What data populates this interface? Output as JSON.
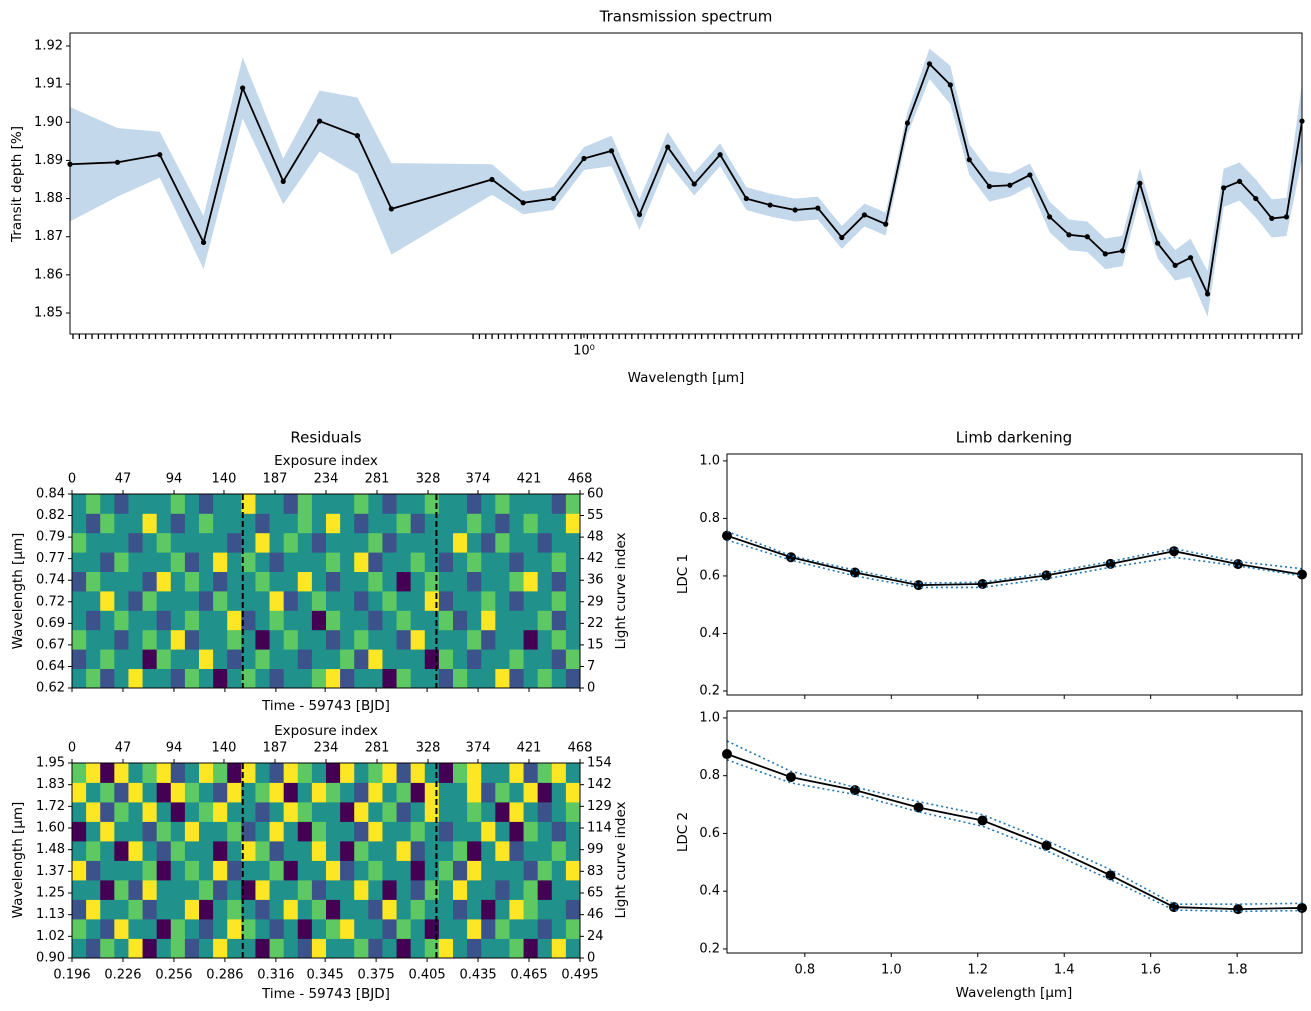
{
  "chart_data": [
    {
      "type": "line",
      "title": "Transmission spectrum",
      "xlabel": "Wavelength [μm]",
      "ylabel": "Transit depth [%]",
      "xscale": "log",
      "xlim": [
        0.62,
        1.95
      ],
      "xticks": [
        {
          "value": 1,
          "label": "10⁰"
        }
      ],
      "ylim": [
        1.8445,
        1.9234
      ],
      "yticks": [
        1.85,
        1.86,
        1.87,
        1.88,
        1.89,
        {
          "value": 1.9,
          "label": "1.90"
        },
        1.91,
        1.92
      ],
      "band_color": "#c4d8eb",
      "x": [
        0.62,
        0.648,
        0.674,
        0.702,
        0.728,
        0.756,
        0.782,
        0.81,
        0.836,
        0.918,
        0.945,
        0.972,
        1.0,
        1.026,
        1.053,
        1.081,
        1.108,
        1.135,
        1.163,
        1.189,
        1.217,
        1.243,
        1.271,
        1.298,
        1.324,
        1.351,
        1.379,
        1.406,
        1.431,
        1.458,
        1.486,
        1.514,
        1.542,
        1.57,
        1.597,
        1.624,
        1.65,
        1.677,
        1.705,
        1.733,
        1.758,
        1.786,
        1.813,
        1.84,
        1.868,
        1.896,
        1.922,
        1.95
      ],
      "series": [
        {
          "color": "#000000",
          "marker": true,
          "values": [
            1.889,
            1.8895,
            1.8915,
            1.8685,
            1.909,
            1.8845,
            1.9003,
            1.8965,
            1.8773,
            1.885,
            1.8789,
            1.88,
            1.8905,
            1.8925,
            1.8758,
            1.8935,
            1.8838,
            1.8915,
            1.88,
            1.8783,
            1.877,
            1.8775,
            1.8698,
            1.8757,
            1.8733,
            1.8998,
            1.9153,
            1.9098,
            1.8902,
            1.8832,
            1.8835,
            1.8862,
            1.8752,
            1.8705,
            1.87,
            1.8655,
            1.8663,
            1.884,
            1.8683,
            1.8625,
            1.8645,
            1.855,
            1.8828,
            1.8845,
            1.88,
            1.8748,
            1.8752,
            1.9003
          ],
          "errors": [
            0.015,
            0.009,
            0.006,
            0.007,
            0.008,
            0.006,
            0.008,
            0.01,
            0.012,
            0.004,
            0.003,
            0.003,
            0.003,
            0.004,
            0.004,
            0.004,
            0.003,
            0.003,
            0.003,
            0.003,
            0.003,
            0.003,
            0.003,
            0.003,
            0.003,
            0.003,
            0.004,
            0.005,
            0.004,
            0.004,
            0.003,
            0.003,
            0.004,
            0.004,
            0.004,
            0.004,
            0.004,
            0.004,
            0.004,
            0.004,
            0.005,
            0.006,
            0.005,
            0.005,
            0.005,
            0.005,
            0.005,
            0.01
          ]
        }
      ]
    },
    {
      "type": "heatmap",
      "title": "Residuals",
      "xlabel": "Time - 59743 [BJD]",
      "ylabel": "Wavelength [μm]",
      "y2label": "Light curve index",
      "colormap": "viridis",
      "zlim": [
        0,
        4
      ],
      "xlim": [
        0.196,
        0.495
      ],
      "xticks": [
        0.196,
        0.226,
        0.256,
        0.286,
        0.316,
        0.345,
        0.375,
        0.405,
        0.435,
        0.465,
        0.495
      ],
      "ylim": [
        0.62,
        0.84
      ],
      "yticks": [
        0.62,
        {
          "value": 0.6444,
          "label": "0.64"
        },
        {
          "value": 0.6689,
          "label": "0.67"
        },
        {
          "value": 0.6933,
          "label": "0.69"
        },
        {
          "value": 0.7178,
          "label": "0.72"
        },
        {
          "value": 0.7422,
          "label": "0.74"
        },
        {
          "value": 0.7667,
          "label": "0.77"
        },
        {
          "value": 0.7911,
          "label": "0.79"
        },
        {
          "value": 0.8156,
          "label": "0.82"
        },
        0.84
      ],
      "y2ticks": [
        0,
        7,
        15,
        22,
        29,
        36,
        42,
        48,
        55,
        60
      ],
      "top_axis": {
        "label": "Exposure index",
        "lim": [
          0,
          468
        ],
        "ticks": [
          0,
          47,
          94,
          140,
          187,
          234,
          281,
          328,
          374,
          421,
          468
        ]
      },
      "vlines": [
        0.2965,
        0.4105
      ],
      "z": [
        [
          2,
          3,
          1,
          2,
          4,
          2,
          2,
          1,
          3,
          2,
          0,
          2,
          3,
          2,
          1,
          2,
          2,
          3,
          4,
          1,
          2,
          2,
          0,
          3,
          2,
          2,
          1,
          3,
          2,
          2,
          4,
          1,
          2,
          3,
          2,
          1
        ],
        [
          1,
          2,
          3,
          2,
          2,
          0,
          3,
          2,
          2,
          4,
          2,
          1,
          2,
          3,
          2,
          2,
          1,
          2,
          2,
          3,
          1,
          4,
          2,
          2,
          2,
          0,
          3,
          2,
          1,
          2,
          2,
          3,
          2,
          2,
          1,
          3
        ],
        [
          3,
          2,
          2,
          1,
          2,
          3,
          2,
          4,
          1,
          2,
          2,
          3,
          2,
          0,
          2,
          3,
          2,
          2,
          1,
          2,
          3,
          2,
          2,
          1,
          4,
          2,
          2,
          2,
          3,
          1,
          2,
          2,
          0,
          2,
          3,
          2
        ],
        [
          2,
          1,
          2,
          3,
          2,
          2,
          1,
          2,
          3,
          2,
          2,
          4,
          1,
          2,
          3,
          2,
          2,
          0,
          3,
          2,
          2,
          1,
          2,
          3,
          2,
          2,
          3,
          1,
          2,
          4,
          2,
          2,
          2,
          3,
          1,
          2
        ],
        [
          2,
          2,
          4,
          2,
          1,
          3,
          2,
          2,
          2,
          1,
          3,
          2,
          2,
          2,
          4,
          1,
          2,
          3,
          2,
          2,
          1,
          2,
          3,
          2,
          2,
          4,
          1,
          2,
          2,
          3,
          2,
          1,
          2,
          2,
          3,
          2
        ],
        [
          1,
          3,
          2,
          2,
          2,
          1,
          4,
          2,
          3,
          2,
          1,
          2,
          2,
          3,
          2,
          2,
          4,
          2,
          1,
          2,
          2,
          3,
          2,
          0,
          2,
          3,
          2,
          2,
          1,
          2,
          2,
          3,
          4,
          2,
          1,
          2
        ],
        [
          2,
          2,
          1,
          3,
          2,
          2,
          2,
          3,
          1,
          2,
          4,
          2,
          3,
          2,
          1,
          2,
          2,
          2,
          3,
          2,
          4,
          1,
          2,
          2,
          3,
          2,
          1,
          2,
          3,
          2,
          2,
          1,
          2,
          2,
          3,
          2
        ],
        [
          3,
          2,
          2,
          2,
          1,
          2,
          3,
          2,
          2,
          2,
          2,
          1,
          2,
          4,
          2,
          3,
          2,
          1,
          2,
          2,
          2,
          3,
          1,
          2,
          2,
          2,
          2,
          4,
          2,
          1,
          3,
          2,
          2,
          1,
          2,
          2
        ],
        [
          2,
          1,
          3,
          2,
          2,
          4,
          2,
          1,
          2,
          3,
          2,
          2,
          2,
          1,
          2,
          2,
          3,
          2,
          4,
          2,
          1,
          2,
          2,
          3,
          1,
          2,
          2,
          2,
          3,
          2,
          1,
          2,
          3,
          2,
          2,
          4
        ],
        [
          2,
          3,
          2,
          1,
          2,
          2,
          2,
          3,
          2,
          1,
          2,
          2,
          4,
          2,
          2,
          1,
          3,
          2,
          2,
          2,
          3,
          2,
          1,
          2,
          2,
          3,
          2,
          2,
          1,
          2,
          3,
          2,
          2,
          2,
          1,
          3
        ]
      ]
    },
    {
      "type": "heatmap",
      "xlabel": "Time - 59743 [BJD]",
      "ylabel": "Wavelength [μm]",
      "y2label": "Light curve index",
      "colormap": "viridis",
      "zlim": [
        0,
        4
      ],
      "xlim": [
        0.196,
        0.495
      ],
      "xticks": [
        0.196,
        0.226,
        0.256,
        0.286,
        0.316,
        0.345,
        0.375,
        0.405,
        0.435,
        0.465,
        0.495
      ],
      "ylim": [
        0.9,
        1.95
      ],
      "yticks": [
        {
          "value": 0.9,
          "label": "0.90"
        },
        {
          "value": 1.0167,
          "label": "1.02"
        },
        {
          "value": 1.1333,
          "label": "1.13"
        },
        1.25,
        {
          "value": 1.3667,
          "label": "1.37"
        },
        {
          "value": 1.4833,
          "label": "1.48"
        },
        {
          "value": 1.6,
          "label": "1.60"
        },
        {
          "value": 1.7167,
          "label": "1.72"
        },
        {
          "value": 1.8333,
          "label": "1.83"
        },
        1.95
      ],
      "y2ticks": [
        0,
        24,
        46,
        65,
        83,
        99,
        114,
        129,
        142,
        154
      ],
      "top_axis": {
        "label": "Exposure index",
        "lim": [
          0,
          468
        ],
        "ticks": [
          0,
          47,
          94,
          140,
          187,
          234,
          281,
          328,
          374,
          421,
          468
        ]
      },
      "vlines": [
        0.2965,
        0.4105
      ],
      "z": [
        [
          2,
          1,
          3,
          2,
          4,
          0,
          2,
          3,
          1,
          2,
          4,
          2,
          2,
          0,
          3,
          2,
          1,
          4,
          2,
          2,
          3,
          1,
          2,
          0,
          2,
          3,
          4,
          2,
          1,
          2,
          2,
          3,
          0,
          2,
          4,
          2
        ],
        [
          3,
          2,
          1,
          4,
          2,
          2,
          0,
          3,
          2,
          1,
          2,
          4,
          3,
          2,
          1,
          2,
          0,
          2,
          3,
          4,
          2,
          2,
          1,
          3,
          2,
          0,
          2,
          2,
          4,
          1,
          3,
          2,
          2,
          1,
          2,
          3
        ],
        [
          1,
          4,
          2,
          2,
          3,
          1,
          2,
          2,
          4,
          0,
          2,
          3,
          2,
          1,
          2,
          4,
          2,
          3,
          0,
          2,
          2,
          1,
          4,
          2,
          3,
          2,
          2,
          1,
          2,
          0,
          2,
          4,
          3,
          2,
          2,
          1
        ],
        [
          2,
          2,
          0,
          3,
          1,
          4,
          2,
          2,
          2,
          3,
          1,
          2,
          0,
          4,
          2,
          2,
          3,
          1,
          2,
          2,
          4,
          2,
          0,
          2,
          1,
          3,
          2,
          4,
          2,
          2,
          1,
          2,
          3,
          0,
          2,
          2
        ],
        [
          4,
          1,
          2,
          2,
          2,
          3,
          0,
          2,
          3,
          2,
          4,
          1,
          2,
          2,
          3,
          0,
          2,
          2,
          4,
          1,
          2,
          3,
          2,
          2,
          0,
          2,
          3,
          1,
          4,
          2,
          2,
          2,
          1,
          3,
          2,
          4
        ],
        [
          2,
          3,
          2,
          0,
          4,
          2,
          1,
          3,
          2,
          2,
          0,
          2,
          4,
          3,
          1,
          2,
          2,
          4,
          2,
          0,
          3,
          2,
          2,
          4,
          1,
          2,
          2,
          3,
          0,
          2,
          4,
          1,
          2,
          2,
          3,
          2
        ],
        [
          0,
          2,
          4,
          2,
          2,
          1,
          3,
          2,
          4,
          2,
          2,
          3,
          1,
          2,
          4,
          2,
          0,
          3,
          2,
          2,
          1,
          4,
          2,
          2,
          3,
          2,
          1,
          2,
          2,
          4,
          2,
          0,
          3,
          2,
          1,
          2
        ],
        [
          2,
          4,
          1,
          3,
          2,
          4,
          2,
          0,
          2,
          3,
          4,
          2,
          2,
          1,
          2,
          4,
          3,
          2,
          2,
          0,
          4,
          2,
          3,
          1,
          2,
          4,
          2,
          2,
          3,
          2,
          0,
          4,
          2,
          1,
          2,
          3
        ],
        [
          4,
          2,
          3,
          1,
          4,
          2,
          0,
          4,
          3,
          2,
          1,
          4,
          2,
          3,
          4,
          0,
          2,
          4,
          3,
          2,
          1,
          4,
          2,
          3,
          0,
          4,
          2,
          2,
          4,
          1,
          3,
          2,
          4,
          0,
          2,
          4
        ],
        [
          3,
          4,
          0,
          4,
          2,
          3,
          4,
          1,
          2,
          4,
          3,
          0,
          4,
          2,
          1,
          4,
          3,
          2,
          0,
          4,
          2,
          3,
          4,
          1,
          4,
          2,
          0,
          3,
          4,
          2,
          2,
          4,
          1,
          3,
          4,
          2
        ]
      ]
    },
    {
      "type": "line",
      "title": "Limb darkening",
      "ylabel": "LDC 1",
      "xlim": [
        0.62,
        1.95
      ],
      "xticks": [
        0.8,
        {
          "value": 1,
          "label": "1.0"
        },
        1.2,
        1.4,
        1.6,
        1.8
      ],
      "ylim": [
        0.186,
        1.024
      ],
      "yticks": [
        0.2,
        0.4,
        0.6,
        0.8,
        {
          "value": 1,
          "label": "1.0"
        }
      ],
      "x": [
        0.62,
        0.768,
        0.916,
        1.063,
        1.211,
        1.359,
        1.507,
        1.654,
        1.802,
        1.95
      ],
      "series": [
        {
          "color": "#000000",
          "marker": true,
          "values": [
            0.74,
            0.665,
            0.612,
            0.568,
            0.572,
            0.602,
            0.642,
            0.686,
            0.641,
            0.605
          ]
        },
        {
          "color": "#1f77b4",
          "linestyle": "dotted",
          "values": [
            0.755,
            0.67,
            0.62,
            0.575,
            0.578,
            0.61,
            0.65,
            0.695,
            0.65,
            0.625
          ]
        },
        {
          "color": "#1f77b4",
          "linestyle": "dotted",
          "values": [
            0.725,
            0.655,
            0.6,
            0.56,
            0.56,
            0.59,
            0.63,
            0.665,
            0.635,
            0.6
          ]
        }
      ]
    },
    {
      "type": "line",
      "xlabel": "Wavelength [μm]",
      "ylabel": "LDC 2",
      "xlim": [
        0.62,
        1.95
      ],
      "xticks": [
        0.8,
        {
          "value": 1,
          "label": "1.0"
        },
        1.2,
        1.4,
        1.6,
        1.8
      ],
      "ylim": [
        0.186,
        1.024
      ],
      "yticks": [
        0.2,
        0.4,
        0.6,
        0.8,
        {
          "value": 1,
          "label": "1.0"
        }
      ],
      "x": [
        0.62,
        0.768,
        0.916,
        1.063,
        1.211,
        1.359,
        1.507,
        1.654,
        1.802,
        1.95
      ],
      "series": [
        {
          "color": "#000000",
          "marker": true,
          "values": [
            0.875,
            0.795,
            0.75,
            0.69,
            0.645,
            0.558,
            0.455,
            0.345,
            0.338,
            0.342
          ]
        },
        {
          "color": "#1f77b4",
          "linestyle": "dotted",
          "values": [
            0.92,
            0.815,
            0.76,
            0.71,
            0.665,
            0.575,
            0.475,
            0.355,
            0.355,
            0.358
          ]
        },
        {
          "color": "#1f77b4",
          "linestyle": "dotted",
          "values": [
            0.855,
            0.775,
            0.735,
            0.675,
            0.625,
            0.54,
            0.44,
            0.335,
            0.33,
            0.333
          ]
        }
      ]
    }
  ]
}
